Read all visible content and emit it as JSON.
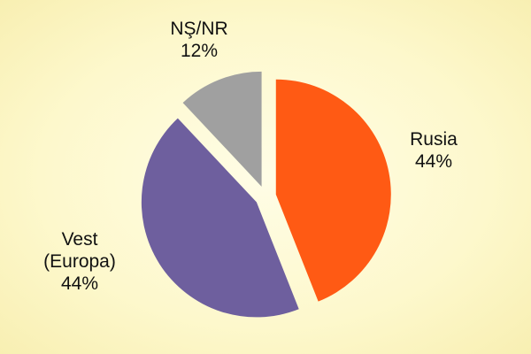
{
  "chart_data": {
    "type": "pie",
    "categories": [
      "Rusia",
      "Vest (Europa)",
      "NŞ/NR"
    ],
    "values": [
      44,
      44,
      12
    ],
    "value_labels": [
      "44%",
      "44%",
      "12%"
    ],
    "colors": [
      "#ff5a14",
      "#6e5f9e",
      "#a0a0a0"
    ]
  }
}
